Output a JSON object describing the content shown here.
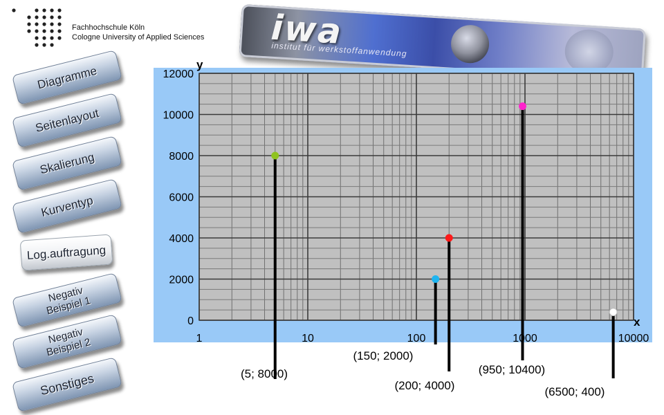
{
  "header": {
    "university_line1": "Fachhochschule Köln",
    "university_line2": "Cologne University of Applied Sciences",
    "banner_name": "iwa",
    "banner_subtitle": "institut für werkstoffanwendung"
  },
  "nav": {
    "items": [
      {
        "label": "Diagramme",
        "active": false
      },
      {
        "label": "Seitenlayout",
        "active": false
      },
      {
        "label": "Skalierung",
        "active": false
      },
      {
        "label": "Kurventyp",
        "active": false
      },
      {
        "label": "Log.auftragung",
        "active": true
      },
      {
        "label": "Negativ\nBeispiel 1",
        "active": false
      },
      {
        "label": "Negativ\nBeispiel 2",
        "active": false
      },
      {
        "label": "Sonstiges",
        "active": false
      }
    ]
  },
  "chart_data": {
    "type": "scatter",
    "xscale": "log",
    "xlim": [
      1,
      10000
    ],
    "ylim": [
      0,
      12000
    ],
    "xlabel": "x",
    "ylabel": "y",
    "x_ticks": [
      "1",
      "10",
      "100",
      "1000",
      "10000"
    ],
    "y_ticks": [
      "0",
      "2000",
      "4000",
      "6000",
      "8000",
      "10000",
      "12000"
    ],
    "grid": true,
    "background_color": "#99c9f7",
    "plot_color": "#c0c0c0",
    "points": [
      {
        "x": 5,
        "y": 8000,
        "label": "(5; 8000)",
        "color": "#8fc320"
      },
      {
        "x": 150,
        "y": 2000,
        "label": "(150; 2000)",
        "color": "#1eb4f0"
      },
      {
        "x": 200,
        "y": 4000,
        "label": "(200; 4000)",
        "color": "#ff1a1a"
      },
      {
        "x": 950,
        "y": 10400,
        "label": "(950; 10400)",
        "color": "#ff22cc"
      },
      {
        "x": 6500,
        "y": 400,
        "label": "(6500; 400)",
        "color": "#ffffff"
      }
    ]
  }
}
